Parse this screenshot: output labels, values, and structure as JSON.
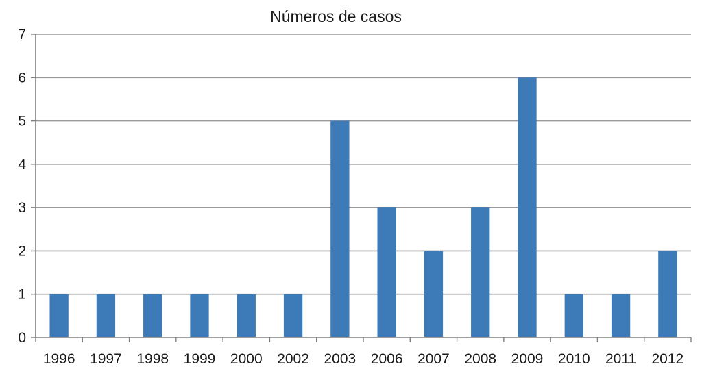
{
  "chart_data": {
    "type": "bar",
    "title": "Números de casos",
    "xlabel": "",
    "ylabel": "",
    "categories": [
      "1996",
      "1997",
      "1998",
      "1999",
      "2000",
      "2002",
      "2003",
      "2006",
      "2007",
      "2008",
      "2009",
      "2010",
      "2011",
      "2012"
    ],
    "values": [
      1,
      1,
      1,
      1,
      1,
      1,
      5,
      3,
      2,
      3,
      6,
      1,
      1,
      2
    ],
    "ylim": [
      0,
      7
    ],
    "yticks": [
      "0",
      "1",
      "2",
      "3",
      "4",
      "5",
      "6",
      "7"
    ],
    "grid": true,
    "legend": "none",
    "bar_color": "#3d7ab8",
    "grid_color": "#9a9a9a",
    "axis_color": "#7f7f7f"
  }
}
